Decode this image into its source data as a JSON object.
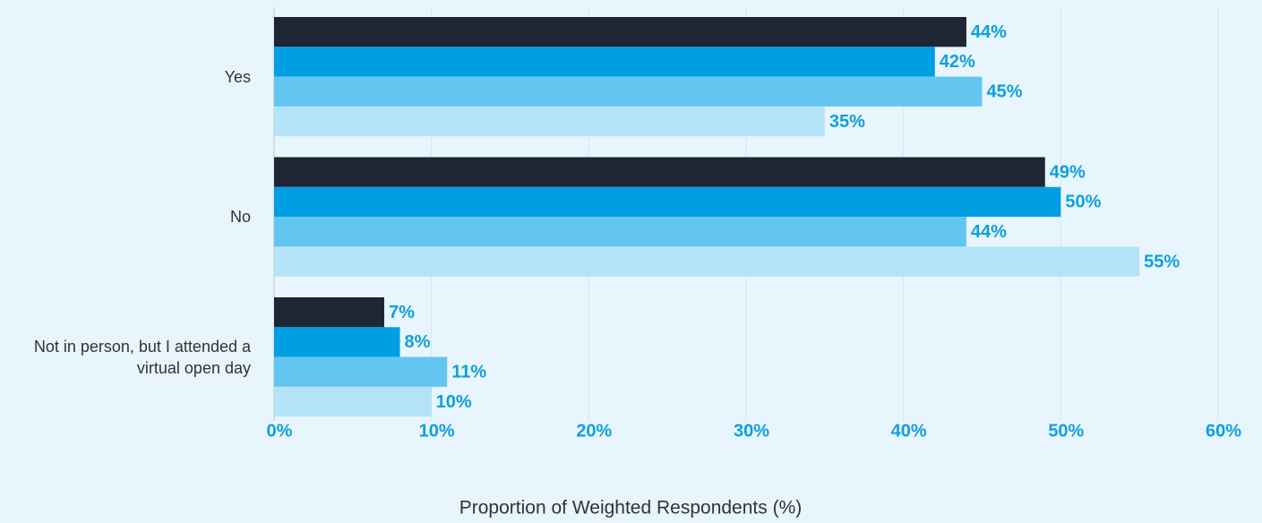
{
  "chart_data": {
    "type": "bar",
    "orientation": "horizontal",
    "categories": [
      "Yes",
      "No",
      "Not in person, but I attended a virtual open day"
    ],
    "series": [
      {
        "color": "#1e2535",
        "values": [
          44,
          49,
          7
        ],
        "value_labels": [
          "44%",
          "49%",
          "7%"
        ]
      },
      {
        "color": "#009fe3",
        "values": [
          42,
          50,
          8
        ],
        "value_labels": [
          "42%",
          "50%",
          "8%"
        ]
      },
      {
        "color": "#63c6f0",
        "values": [
          45,
          44,
          11
        ],
        "value_labels": [
          "45%",
          "44%",
          "11%"
        ]
      },
      {
        "color": "#b4e3f7",
        "values": [
          35,
          55,
          10
        ],
        "value_labels": [
          "35%",
          "55%",
          "10%"
        ]
      }
    ],
    "xlim": [
      0,
      60
    ],
    "xticks": [
      {
        "value": 0,
        "label": "0%"
      },
      {
        "value": 10,
        "label": "10%"
      },
      {
        "value": 20,
        "label": "20%"
      },
      {
        "value": 30,
        "label": "30%"
      },
      {
        "value": 40,
        "label": "40%"
      },
      {
        "value": 50,
        "label": "50%"
      },
      {
        "value": 60,
        "label": "60%"
      }
    ],
    "xlabel": "Proportion of Weighted Respondents (%)",
    "grid": true
  }
}
